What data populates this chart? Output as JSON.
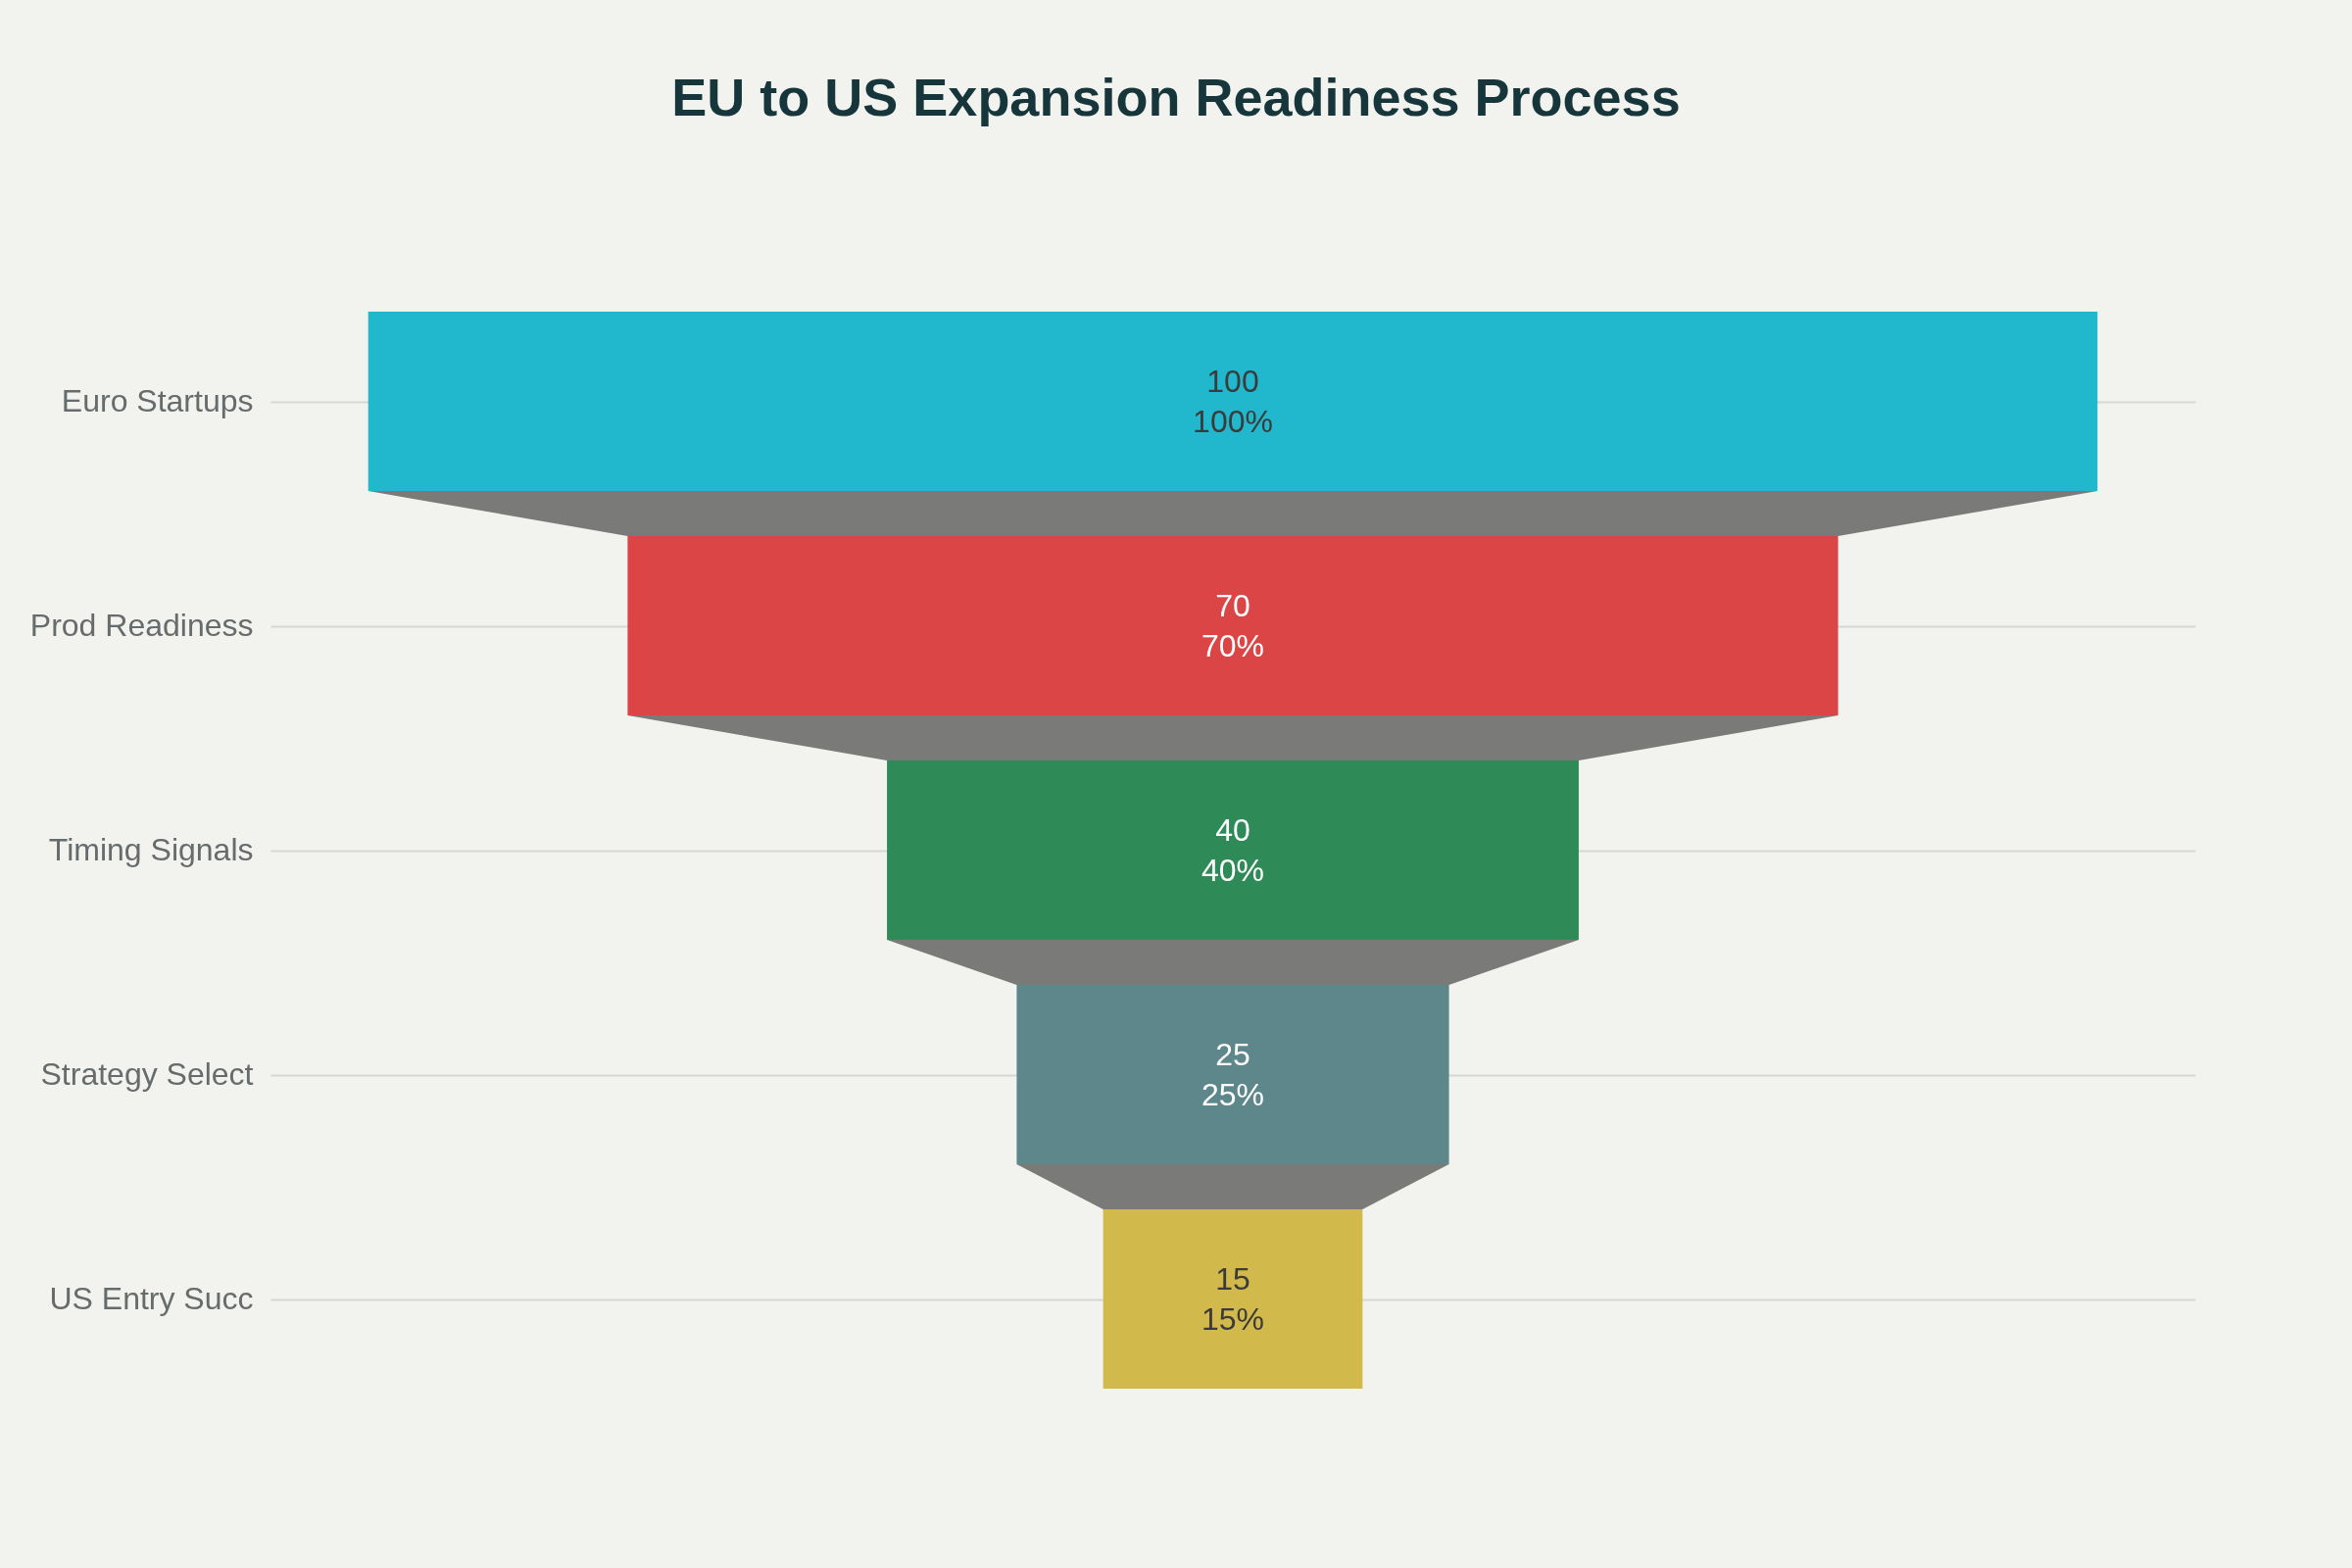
{
  "chart_data": {
    "type": "other",
    "title": "EU to US Expansion Readiness Process",
    "categories": [
      "Euro Startups",
      "Prod Readiness",
      "Timing Signals",
      "Strategy Select",
      "US Entry Succ"
    ],
    "values": [
      100,
      70,
      40,
      25,
      15
    ],
    "colors": [
      "#21b7cc",
      "#db4545",
      "#2e8b57",
      "#5d878b",
      "#d2b94b"
    ],
    "data_labels": true,
    "annotations": [
      "100%",
      "70%",
      "40%",
      "25%",
      "15%"
    ]
  }
}
